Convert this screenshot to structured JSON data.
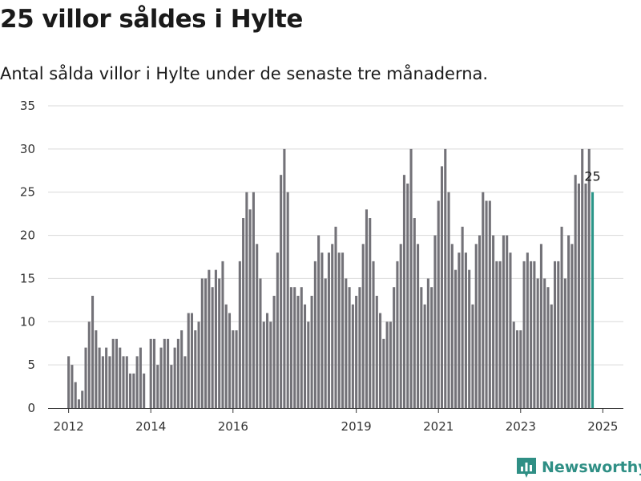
{
  "header": {
    "title": "25 villor såldes i Hylte",
    "subtitle": "Antal sålda villor i Hylte under de senaste tre månaderna."
  },
  "brand": {
    "name": "Newsworthy"
  },
  "colors": {
    "bar": "#737278",
    "highlight": "#2a9588",
    "grid": "#d9d9d9",
    "brand": "#2f8f85"
  },
  "chart_data": {
    "type": "bar",
    "title": "",
    "xlabel": "",
    "ylabel": "",
    "ylim": [
      0,
      35
    ],
    "y_ticks": [
      0,
      5,
      10,
      15,
      20,
      25,
      30,
      35
    ],
    "x_range": [
      2011.5,
      2025.5
    ],
    "x_ticks": [
      {
        "value": 2012,
        "label": "2012"
      },
      {
        "value": 2014,
        "label": "2014"
      },
      {
        "value": 2016,
        "label": "2016"
      },
      {
        "value": 2019,
        "label": "2019"
      },
      {
        "value": 2021,
        "label": "2021"
      },
      {
        "value": 2023,
        "label": "2023"
      },
      {
        "value": 2025,
        "label": "2025"
      }
    ],
    "grid": true,
    "start_month": "2012-01",
    "end_month": "2025-01",
    "values": [
      6,
      5,
      3,
      1,
      2,
      7,
      10,
      13,
      9,
      7,
      6,
      7,
      6,
      8,
      8,
      7,
      6,
      6,
      4,
      4,
      6,
      7,
      4,
      0,
      8,
      8,
      5,
      7,
      8,
      8,
      5,
      7,
      8,
      9,
      6,
      11,
      11,
      9,
      10,
      15,
      15,
      16,
      14,
      16,
      15,
      17,
      12,
      11,
      9,
      9,
      17,
      22,
      25,
      23,
      25,
      19,
      15,
      10,
      11,
      10,
      13,
      18,
      27,
      30,
      25,
      14,
      14,
      13,
      14,
      12,
      10,
      13,
      17,
      20,
      18,
      15,
      18,
      19,
      21,
      18,
      18,
      15,
      14,
      12,
      13,
      14,
      19,
      23,
      22,
      17,
      13,
      11,
      8,
      10,
      10,
      14,
      17,
      19,
      27,
      26,
      30,
      22,
      19,
      14,
      12,
      15,
      14,
      20,
      24,
      28,
      30,
      25,
      19,
      16,
      18,
      21,
      18,
      16,
      12,
      19,
      20,
      25,
      24,
      24,
      20,
      17,
      17,
      20,
      20,
      18,
      10,
      9,
      9,
      17,
      18,
      17,
      17,
      15,
      19,
      15,
      14,
      12,
      17,
      17,
      21,
      15,
      20,
      19,
      27,
      26,
      30,
      26,
      30,
      25
    ],
    "highlight": {
      "label": "25",
      "value": 25
    }
  }
}
